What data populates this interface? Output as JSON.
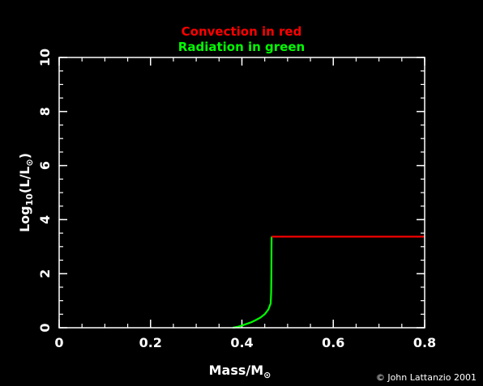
{
  "chart_data": {
    "type": "line",
    "legend_lines": [
      {
        "text": "Convection in red",
        "color": "#ff0000"
      },
      {
        "text": "Radiation in green",
        "color": "#00ff00"
      }
    ],
    "xlabel": {
      "main": "Mass/M",
      "sub": "⊙"
    },
    "ylabel": {
      "pre": "Log",
      "sub1": "10",
      "mid": "(L/L",
      "sub2": "⊙",
      "post": ")"
    },
    "xlim": [
      0,
      0.8
    ],
    "ylim": [
      0,
      10
    ],
    "xticks": [
      {
        "value": 0,
        "label": "0"
      },
      {
        "value": 0.2,
        "label": "0.2"
      },
      {
        "value": 0.4,
        "label": "0.4"
      },
      {
        "value": 0.6,
        "label": "0.6"
      },
      {
        "value": 0.8,
        "label": "0.8"
      }
    ],
    "yticks": [
      {
        "value": 0,
        "label": "0"
      },
      {
        "value": 2,
        "label": "2"
      },
      {
        "value": 4,
        "label": "4"
      },
      {
        "value": 6,
        "label": "6"
      },
      {
        "value": 8,
        "label": "8"
      },
      {
        "value": 10,
        "label": "10"
      }
    ],
    "x_minor_step": 0.05,
    "y_minor_step": 0.5,
    "series": [
      {
        "color": "#00ff00",
        "points": [
          [
            0.38,
            0.0
          ],
          [
            0.39,
            0.03
          ],
          [
            0.4,
            0.08
          ],
          [
            0.41,
            0.14
          ],
          [
            0.42,
            0.2
          ],
          [
            0.43,
            0.28
          ],
          [
            0.44,
            0.37
          ],
          [
            0.45,
            0.5
          ],
          [
            0.458,
            0.68
          ],
          [
            0.463,
            0.9
          ],
          [
            0.464,
            1.3
          ],
          [
            0.4645,
            2.0
          ],
          [
            0.4648,
            3.0
          ],
          [
            0.465,
            3.37
          ]
        ]
      },
      {
        "color": "#ff0000",
        "points": [
          [
            0.465,
            3.37
          ],
          [
            0.8,
            3.37
          ]
        ]
      }
    ]
  },
  "credit": "© John Lattanzio 2001"
}
